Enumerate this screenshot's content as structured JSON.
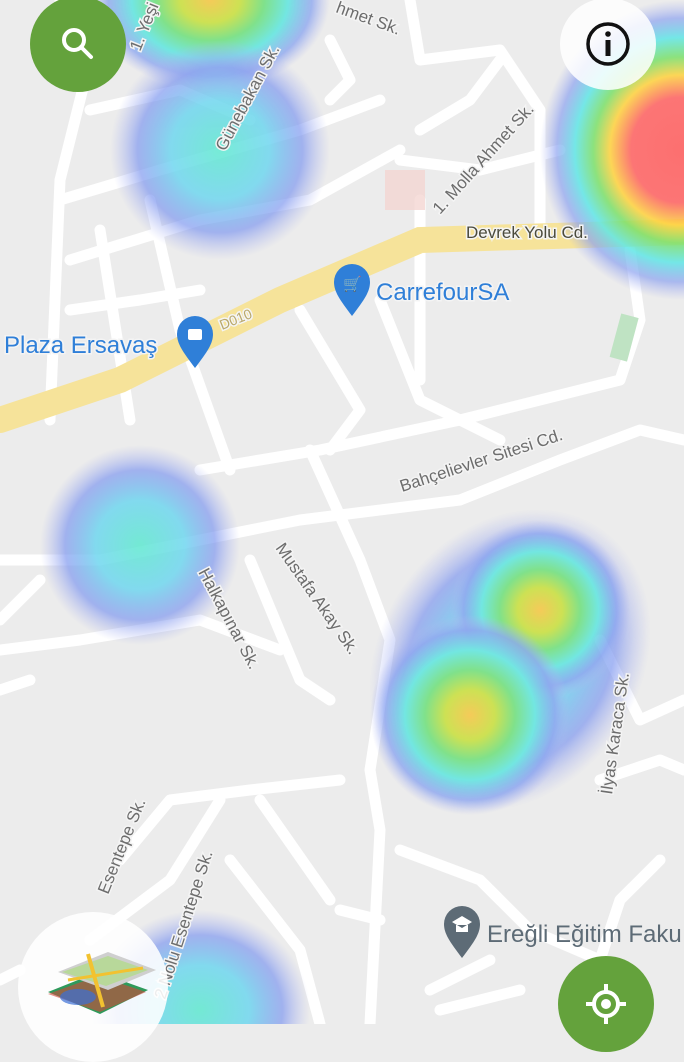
{
  "map": {
    "streets": {
      "yesil": "1. Yeşi",
      "ahmet_top": "hmet Sk.",
      "gunebakan": "Günebakan Sk.",
      "molla_ahmet": "1. Molla Ahmet Sk.",
      "devrek_yolu": "Devrek Yolu Cd.",
      "d010": "D010",
      "bahcelievler": "Bahçelievler Sitesi Cd.",
      "mustafa_akay": "Mustafa Akay Sk.",
      "halkapinar": "Halkapınar Sk.",
      "ilyas_karaca": "İlyas Karaca Sk.",
      "esentepe": "Esentepe Sk.",
      "nolu_esentepe": "2 Nolu Esentepe Sk."
    },
    "places": {
      "carrefour": "CarrefourSA",
      "plaza": "Plaza Ersavaş",
      "egitim": "Ereğli Eğitim Faku"
    },
    "colors": {
      "accent_green": "#64a23c",
      "poi_blue": "#2f7fd8",
      "main_road": "#f6e39a"
    }
  },
  "controls": {
    "search": "search-icon",
    "info": "info-icon",
    "locate": "crosshair-icon",
    "layers": "heatmap-layer-icon"
  }
}
